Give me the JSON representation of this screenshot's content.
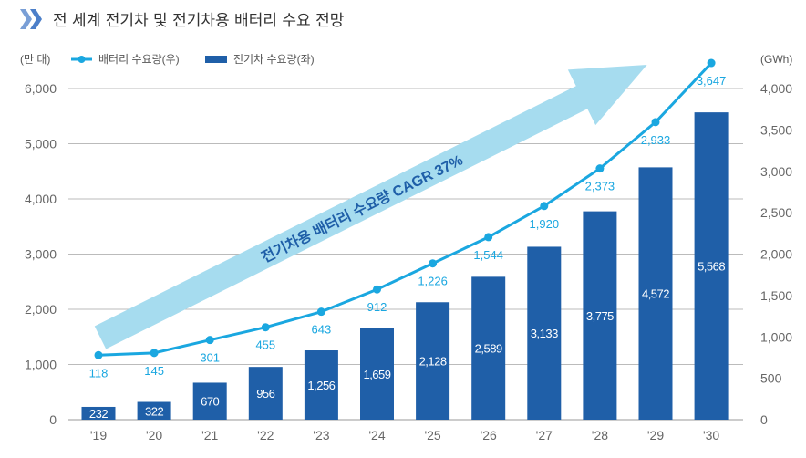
{
  "title": "전 세계 전기차 및 전기차용 배터리 수요 전망",
  "chart_data": {
    "type": "bar+line",
    "title": "전 세계 전기차 및 전기차용 배터리 수요 전망",
    "categories": [
      "'19",
      "'20",
      "'21",
      "'22",
      "'23",
      "'24",
      "'25",
      "'26",
      "'27",
      "'28",
      "'29",
      "'30"
    ],
    "series": [
      {
        "name": "전기차 수요량(좌)",
        "type": "bar",
        "axis": "left",
        "color": "#1f5fa8",
        "values": [
          232,
          322,
          670,
          956,
          1256,
          1659,
          2128,
          2589,
          3133,
          3775,
          4572,
          5568
        ]
      },
      {
        "name": "배터리 수요량(우)",
        "type": "line",
        "axis": "right",
        "color": "#1aa7e0",
        "values": [
          118,
          145,
          301,
          455,
          643,
          912,
          1226,
          1544,
          1920,
          2373,
          2933,
          3647
        ]
      }
    ],
    "left_axis": {
      "unit": "(만 대)",
      "range": [
        0,
        6000
      ],
      "ticks": [
        "0",
        "1,000",
        "2,000",
        "3,000",
        "4,000",
        "5,000",
        "6,000"
      ]
    },
    "right_axis": {
      "unit": "(GWh)",
      "range": [
        0,
        4000
      ],
      "ticks": [
        "0",
        "500",
        "1,000",
        "1,500",
        "2,000",
        "2,500",
        "3,000",
        "3,500",
        "4,000"
      ]
    },
    "annotation": "전기차용 배터리 수요량 CAGR 37%",
    "annotation_color": "#a6dcef",
    "grid": true,
    "legend": "top-left"
  }
}
